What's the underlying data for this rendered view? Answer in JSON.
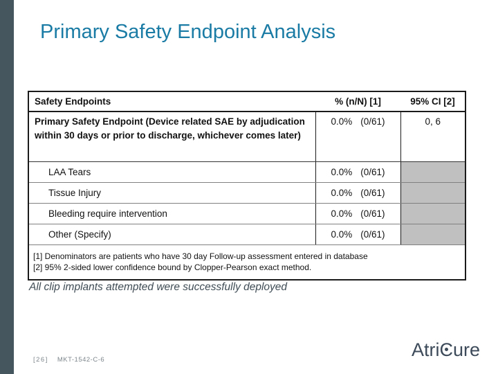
{
  "slide": {
    "title": "Primary Safety Endpoint Analysis",
    "statement": "All clip implants attempted were successfully deployed",
    "footer": {
      "page_number": "[26]",
      "doc_code": "MKT-1542-C-6"
    },
    "logo": {
      "part1": "Atri",
      "c": "C",
      "part2": "ure"
    }
  },
  "table": {
    "headers": [
      "Safety Endpoints",
      "% (n/N) [1]",
      "95% CI [2]"
    ],
    "rows": [
      {
        "label": "Primary Safety Endpoint (Device related SAE by adjudication within 30 days or prior to discharge, whichever comes later)",
        "pct": "0.0%",
        "frac": "(0/61)",
        "ci": "0, 6"
      },
      {
        "label": "LAA Tears",
        "pct": "0.0%",
        "frac": "(0/61)",
        "ci": ""
      },
      {
        "label": "Tissue Injury",
        "pct": "0.0%",
        "frac": "(0/61)",
        "ci": ""
      },
      {
        "label": "Bleeding require intervention",
        "pct": "0.0%",
        "frac": "(0/61)",
        "ci": ""
      },
      {
        "label": "Other (Specify)",
        "pct": "0.0%",
        "frac": "(0/61)",
        "ci": ""
      }
    ],
    "footnotes": [
      "[1] Denominators are patients who have 30 day Follow-up assessment entered in database",
      "[2] 95% 2-sided lower confidence bound by Clopper-Pearson exact method."
    ]
  },
  "colors": {
    "accent_bar": "#45565E",
    "title": "#1A7BA4",
    "gray_cell": "#C0C0C0",
    "logo": "#3C4A59"
  }
}
